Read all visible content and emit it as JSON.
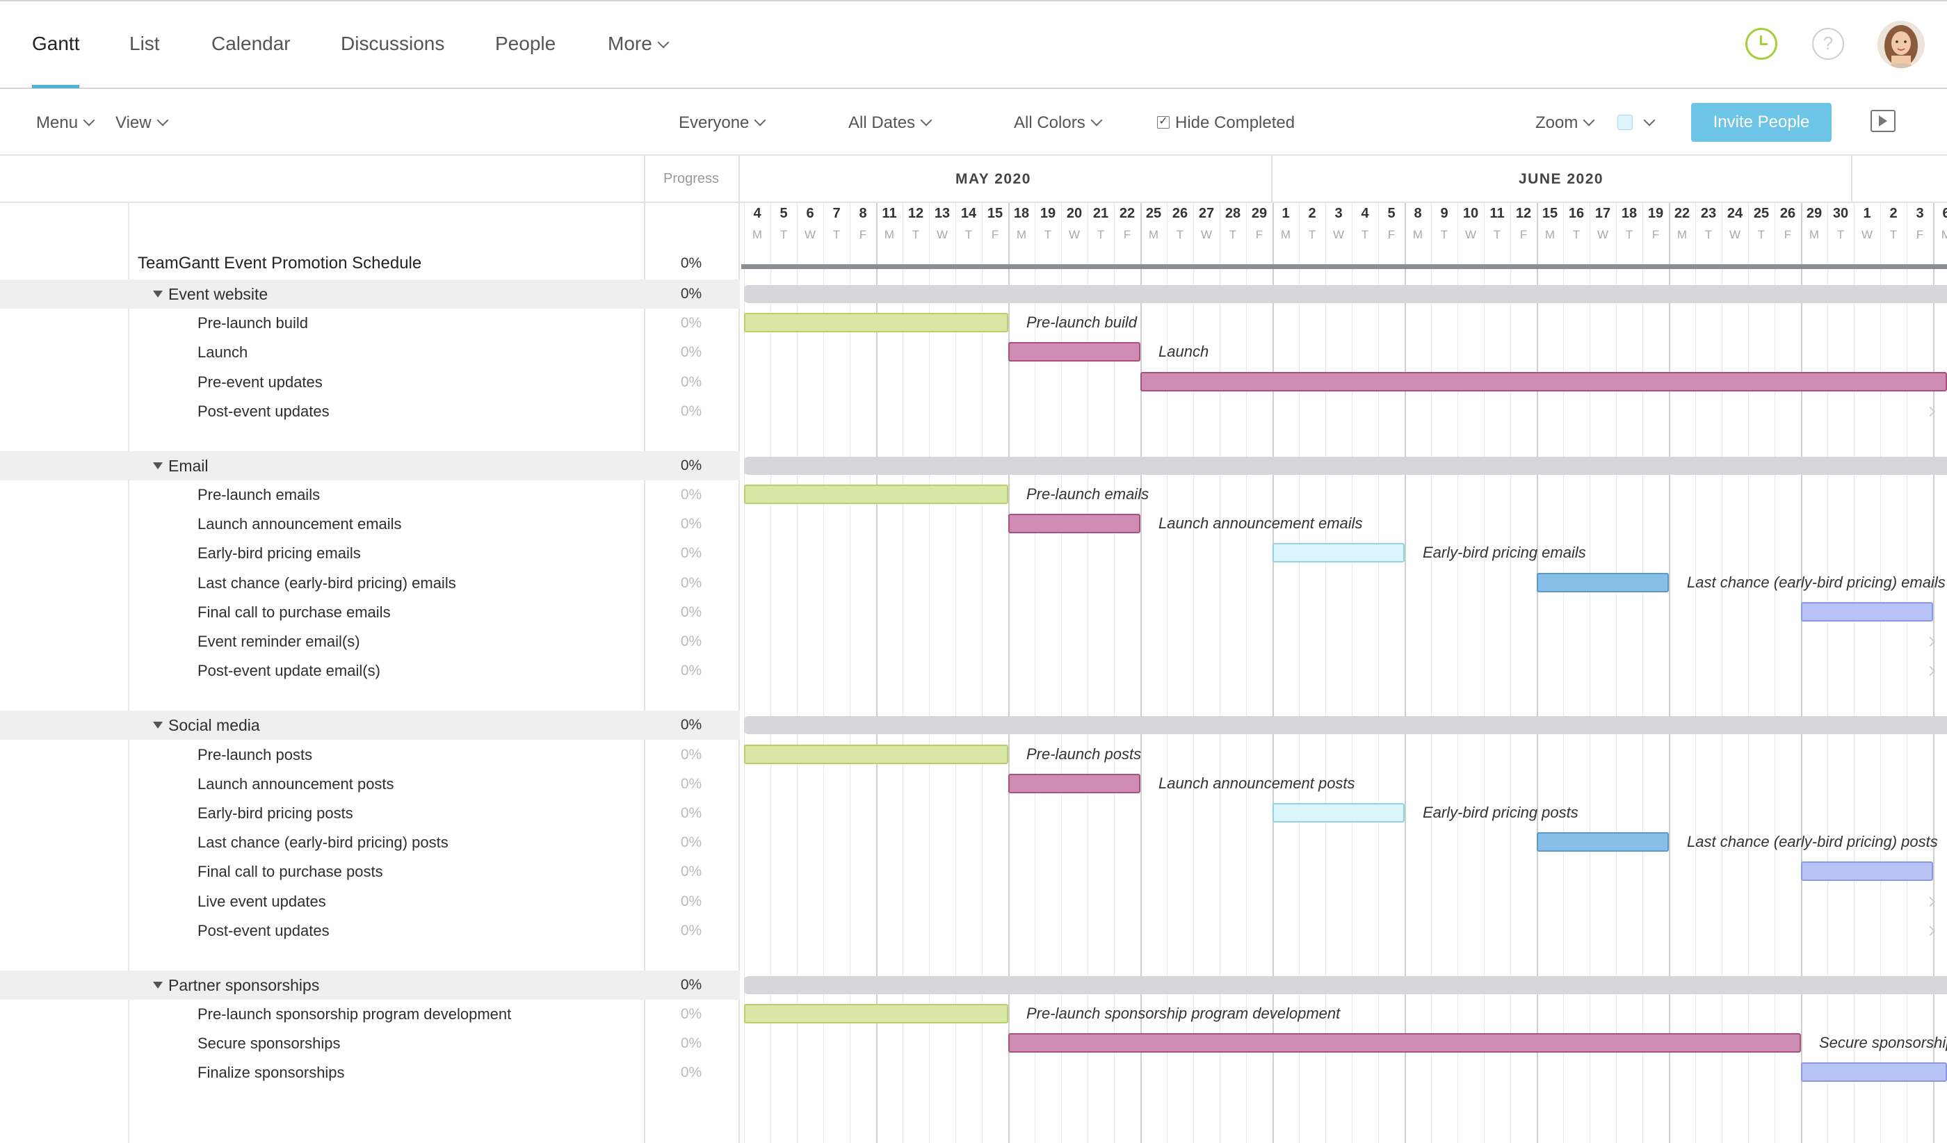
{
  "nav": {
    "tabs": [
      "Gantt",
      "List",
      "Calendar",
      "Discussions",
      "People",
      "More"
    ]
  },
  "toolbar": {
    "menu": "Menu",
    "view": "View",
    "everyone": "Everyone",
    "all_dates": "All Dates",
    "all_colors": "All Colors",
    "hide_completed": "Hide Completed",
    "zoom": "Zoom",
    "invite": "Invite People"
  },
  "header": {
    "progress": "Progress"
  },
  "timeline": {
    "months": [
      "MAY 2020",
      "JUNE 2020"
    ],
    "days": [
      {
        "n": "4",
        "d": "M"
      },
      {
        "n": "5",
        "d": "T"
      },
      {
        "n": "6",
        "d": "W"
      },
      {
        "n": "7",
        "d": "T"
      },
      {
        "n": "8",
        "d": "F"
      },
      {
        "n": "11",
        "d": "M"
      },
      {
        "n": "12",
        "d": "T"
      },
      {
        "n": "13",
        "d": "W"
      },
      {
        "n": "14",
        "d": "T"
      },
      {
        "n": "15",
        "d": "F"
      },
      {
        "n": "18",
        "d": "M"
      },
      {
        "n": "19",
        "d": "T"
      },
      {
        "n": "20",
        "d": "W"
      },
      {
        "n": "21",
        "d": "T"
      },
      {
        "n": "22",
        "d": "F"
      },
      {
        "n": "25",
        "d": "M"
      },
      {
        "n": "26",
        "d": "T"
      },
      {
        "n": "27",
        "d": "W"
      },
      {
        "n": "28",
        "d": "T"
      },
      {
        "n": "29",
        "d": "F"
      },
      {
        "n": "1",
        "d": "M"
      },
      {
        "n": "2",
        "d": "T"
      },
      {
        "n": "3",
        "d": "W"
      },
      {
        "n": "4",
        "d": "T"
      },
      {
        "n": "5",
        "d": "F"
      },
      {
        "n": "8",
        "d": "M"
      },
      {
        "n": "9",
        "d": "T"
      },
      {
        "n": "10",
        "d": "W"
      },
      {
        "n": "11",
        "d": "T"
      },
      {
        "n": "12",
        "d": "F"
      },
      {
        "n": "15",
        "d": "M"
      },
      {
        "n": "16",
        "d": "T"
      },
      {
        "n": "17",
        "d": "W"
      },
      {
        "n": "18",
        "d": "T"
      },
      {
        "n": "19",
        "d": "F"
      },
      {
        "n": "22",
        "d": "M"
      },
      {
        "n": "23",
        "d": "T"
      },
      {
        "n": "24",
        "d": "W"
      },
      {
        "n": "25",
        "d": "T"
      },
      {
        "n": "26",
        "d": "F"
      },
      {
        "n": "29",
        "d": "M"
      },
      {
        "n": "30",
        "d": "T"
      },
      {
        "n": "1",
        "d": "W"
      },
      {
        "n": "2",
        "d": "T"
      },
      {
        "n": "3",
        "d": "F"
      },
      {
        "n": "6",
        "d": "M"
      }
    ]
  },
  "colors": {
    "green": "#d8e7a6",
    "green_border": "#b9d06a",
    "pink": "#cf8db5",
    "pink_border": "#a8507f",
    "cyan": "#dbf4f9",
    "cyan_border": "#92d3e3",
    "blue": "#88bfe8",
    "blue_border": "#5a98c8",
    "lavender": "#b9c4f6",
    "lavender_border": "#8c99e0",
    "group": "#d6d7db",
    "project": "#8a8f96"
  },
  "project": {
    "name": "TeamGantt Event Promotion Schedule",
    "progress": "0%"
  },
  "rows": [
    {
      "type": "group",
      "label": "Event website",
      "progress": "0%"
    },
    {
      "type": "task",
      "label": "Pre-launch build",
      "progress": "0%",
      "bar": {
        "start": 0,
        "end": 10,
        "color": "green",
        "label": "Pre-launch build"
      }
    },
    {
      "type": "task",
      "label": "Launch",
      "progress": "0%",
      "bar": {
        "start": 10,
        "end": 15,
        "color": "pink",
        "label": "Launch"
      }
    },
    {
      "type": "task",
      "label": "Pre-event updates",
      "progress": "0%",
      "bar": {
        "start": 15,
        "end": 46,
        "color": "pink",
        "label": ""
      }
    },
    {
      "type": "task",
      "label": "Post-event updates",
      "progress": "0%",
      "arrow": true
    },
    {
      "type": "gap"
    },
    {
      "type": "group",
      "label": "Email",
      "progress": "0%"
    },
    {
      "type": "task",
      "label": "Pre-launch emails",
      "progress": "0%",
      "bar": {
        "start": 0,
        "end": 10,
        "color": "green",
        "label": "Pre-launch emails"
      }
    },
    {
      "type": "task",
      "label": "Launch announcement emails",
      "progress": "0%",
      "bar": {
        "start": 10,
        "end": 15,
        "color": "pink",
        "label": "Launch announcement emails"
      }
    },
    {
      "type": "task",
      "label": "Early-bird pricing emails",
      "progress": "0%",
      "bar": {
        "start": 20,
        "end": 25,
        "color": "cyan",
        "label": "Early-bird pricing emails"
      }
    },
    {
      "type": "task",
      "label": "Last chance (early-bird pricing) emails",
      "progress": "0%",
      "bar": {
        "start": 30,
        "end": 35,
        "color": "blue",
        "label": "Last chance (early-bird pricing) emails"
      }
    },
    {
      "type": "task",
      "label": "Final call to purchase emails",
      "progress": "0%",
      "bar": {
        "start": 40,
        "end": 45,
        "color": "lavender",
        "label": ""
      }
    },
    {
      "type": "task",
      "label": "Event reminder email(s)",
      "progress": "0%",
      "arrow": true
    },
    {
      "type": "task",
      "label": "Post-event update email(s)",
      "progress": "0%",
      "arrow": true
    },
    {
      "type": "gap"
    },
    {
      "type": "group",
      "label": "Social media",
      "progress": "0%"
    },
    {
      "type": "task",
      "label": "Pre-launch posts",
      "progress": "0%",
      "bar": {
        "start": 0,
        "end": 10,
        "color": "green",
        "label": "Pre-launch posts"
      }
    },
    {
      "type": "task",
      "label": "Launch announcement posts",
      "progress": "0%",
      "bar": {
        "start": 10,
        "end": 15,
        "color": "pink",
        "label": "Launch announcement posts"
      }
    },
    {
      "type": "task",
      "label": "Early-bird pricing posts",
      "progress": "0%",
      "bar": {
        "start": 20,
        "end": 25,
        "color": "cyan",
        "label": "Early-bird pricing posts"
      }
    },
    {
      "type": "task",
      "label": "Last chance (early-bird pricing) posts",
      "progress": "0%",
      "bar": {
        "start": 30,
        "end": 35,
        "color": "blue",
        "label": "Last chance (early-bird pricing) posts"
      }
    },
    {
      "type": "task",
      "label": "Final call to purchase posts",
      "progress": "0%",
      "bar": {
        "start": 40,
        "end": 45,
        "color": "lavender",
        "label": ""
      }
    },
    {
      "type": "task",
      "label": "Live event updates",
      "progress": "0%",
      "arrow": true
    },
    {
      "type": "task",
      "label": "Post-event updates",
      "progress": "0%",
      "arrow": true
    },
    {
      "type": "gap"
    },
    {
      "type": "group",
      "label": "Partner sponsorships",
      "progress": "0%"
    },
    {
      "type": "task",
      "label": "Pre-launch sponsorship program development",
      "progress": "0%",
      "bar": {
        "start": 0,
        "end": 10,
        "color": "green",
        "label": "Pre-launch sponsorship program development"
      }
    },
    {
      "type": "task",
      "label": "Secure sponsorships",
      "progress": "0%",
      "bar": {
        "start": 10,
        "end": 40,
        "color": "pink",
        "label": "Secure sponsorships"
      }
    },
    {
      "type": "task",
      "label": "Finalize sponsorships",
      "progress": "0%",
      "bar": {
        "start": 40,
        "end": 46,
        "color": "lavender",
        "label": ""
      }
    }
  ]
}
